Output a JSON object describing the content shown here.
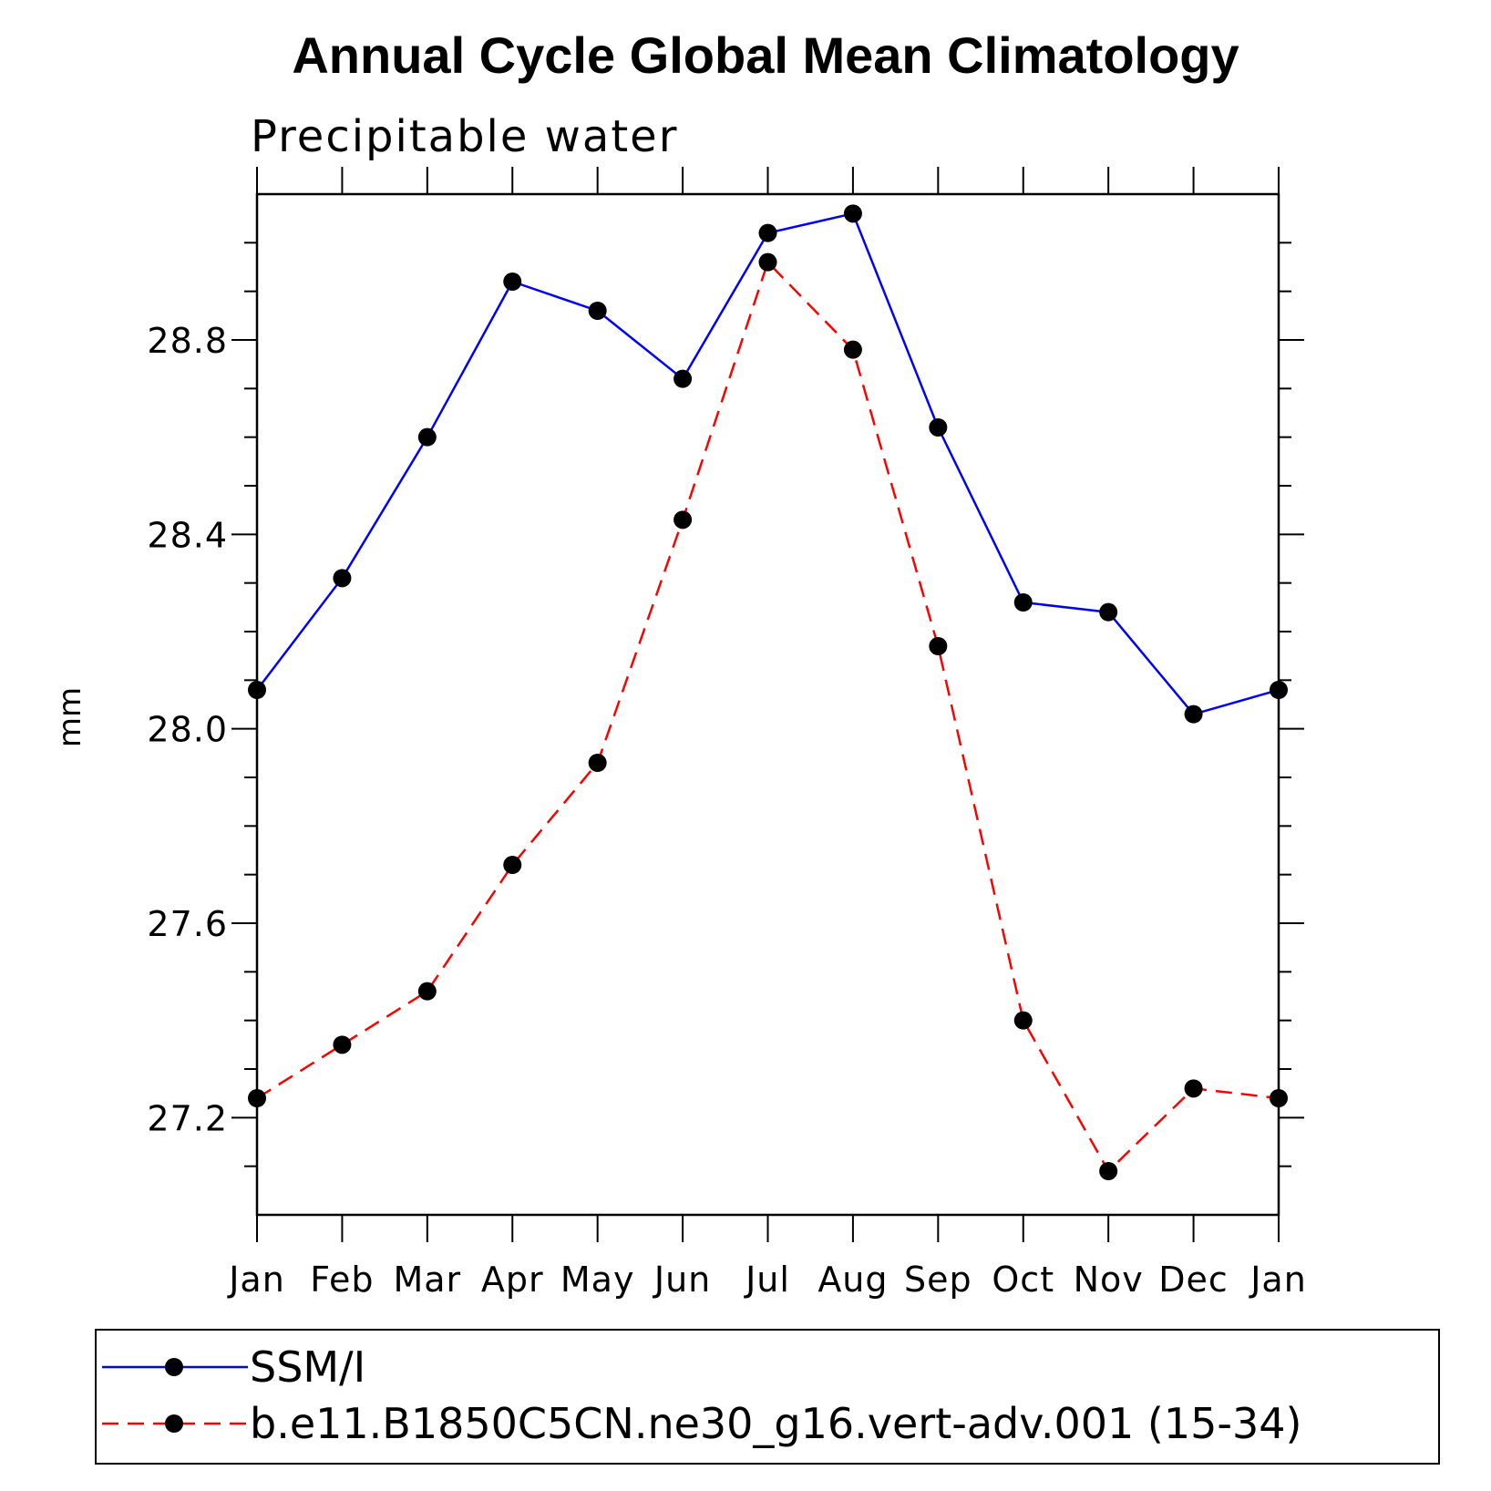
{
  "chart_data": {
    "type": "line",
    "title": "Annual Cycle Global Mean Climatology",
    "subtitle": "Precipitable water",
    "xlabel": "",
    "ylabel": "mm",
    "categories": [
      "Jan",
      "Feb",
      "Mar",
      "Apr",
      "May",
      "Jun",
      "Jul",
      "Aug",
      "Sep",
      "Oct",
      "Nov",
      "Dec",
      "Jan"
    ],
    "ylim": [
      27.0,
      29.1
    ],
    "yticks": [
      "27.2",
      "27.6",
      "28.0",
      "28.4",
      "28.8"
    ],
    "series": [
      {
        "name": "SSM/I",
        "color": "#0000ff",
        "dash": "solid",
        "values": [
          28.08,
          28.31,
          28.6,
          28.92,
          28.86,
          28.72,
          29.02,
          29.06,
          28.62,
          28.26,
          28.24,
          28.03,
          28.08
        ]
      },
      {
        "name": "b.e11.B1850C5CN.ne30_g16.vert-adv.001 (15-34)",
        "color": "#ff0000",
        "dash": "dashed",
        "values": [
          27.24,
          27.35,
          27.46,
          27.72,
          27.93,
          28.43,
          28.96,
          28.78,
          28.17,
          27.4,
          27.09,
          27.26,
          27.24
        ]
      }
    ]
  }
}
